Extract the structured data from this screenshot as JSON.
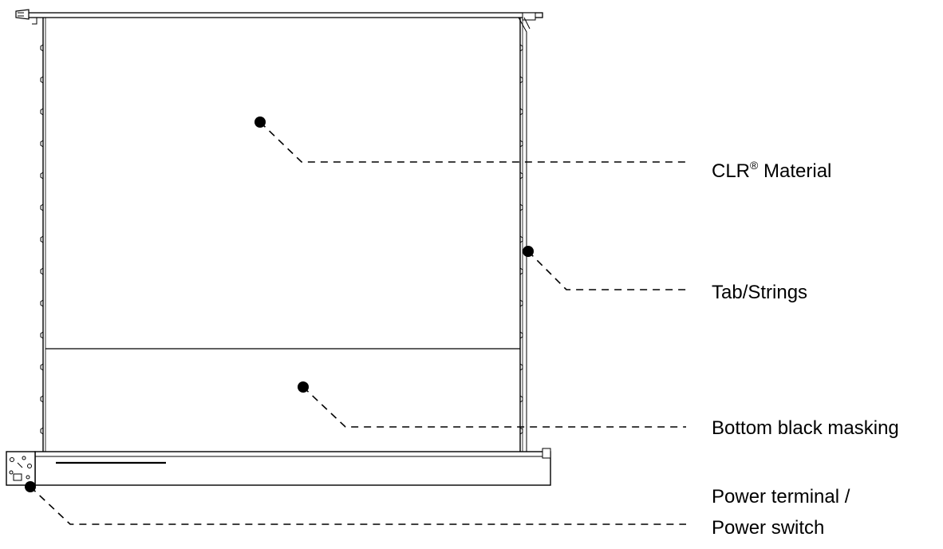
{
  "colors": {
    "background": "#ffffff",
    "ink": "#000000"
  },
  "callouts": [
    {
      "id": "material",
      "text": "CLR",
      "superscript": "®",
      "suffix": " Material"
    },
    {
      "id": "tabs",
      "text": "Tab/Strings"
    },
    {
      "id": "masking",
      "text": "Bottom black masking"
    },
    {
      "id": "power",
      "line1": "Power terminal /",
      "line2": "Power switch"
    }
  ]
}
